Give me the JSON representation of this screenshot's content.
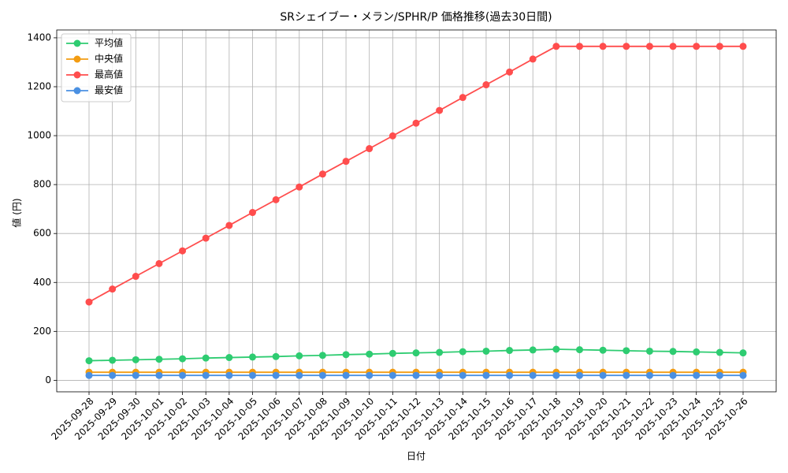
{
  "chart_data": {
    "type": "line",
    "title": "SRシェイブー・メラン/SPHR/P 価格推移(過去30日間)",
    "x_label": "日付",
    "y_label": "値 (円)",
    "categories": [
      "2025-09-28",
      "2025-09-29",
      "2025-09-30",
      "2025-10-01",
      "2025-10-02",
      "2025-10-03",
      "2025-10-04",
      "2025-10-05",
      "2025-10-06",
      "2025-10-07",
      "2025-10-08",
      "2025-10-09",
      "2025-10-10",
      "2025-10-11",
      "2025-10-12",
      "2025-10-13",
      "2025-10-14",
      "2025-10-15",
      "2025-10-16",
      "2025-10-17",
      "2025-10-18",
      "2025-10-19",
      "2025-10-20",
      "2025-10-21",
      "2025-10-22",
      "2025-10-23",
      "2025-10-24",
      "2025-10-25",
      "2025-10-26"
    ],
    "series": [
      {
        "name": "平均値",
        "color": "#2ecc71",
        "values": [
          80,
          82,
          84,
          86,
          88,
          91,
          93,
          95,
          97,
          100,
          102,
          105,
          107,
          110,
          112,
          114,
          117,
          119,
          122,
          124,
          127,
          125,
          123,
          121,
          119,
          118,
          116,
          114,
          112
        ]
      },
      {
        "name": "中央値",
        "color": "#f39c12",
        "values": [
          33,
          33,
          33,
          33,
          33,
          33,
          33,
          33,
          33,
          33,
          33,
          33,
          33,
          33,
          33,
          33,
          33,
          33,
          33,
          33,
          33,
          33,
          33,
          33,
          33,
          33,
          33,
          33,
          33
        ]
      },
      {
        "name": "最高値",
        "color": "#ff4d4d",
        "values": [
          320,
          373,
          425,
          477,
          529,
          581,
          633,
          686,
          738,
          790,
          843,
          895,
          947,
          999,
          1051,
          1103,
          1156,
          1208,
          1260,
          1313,
          1365,
          1365,
          1365,
          1365,
          1365,
          1365,
          1365,
          1365,
          1365
        ]
      },
      {
        "name": "最安値",
        "color": "#4a90e2",
        "values": [
          20,
          20,
          20,
          20,
          20,
          20,
          20,
          20,
          20,
          20,
          20,
          20,
          20,
          20,
          20,
          20,
          20,
          20,
          20,
          20,
          20,
          20,
          20,
          20,
          20,
          20,
          20,
          20,
          20
        ]
      }
    ],
    "ylim": [
      -47,
      1432
    ],
    "yticks": [
      0,
      200,
      400,
      600,
      800,
      1000,
      1200,
      1400
    ],
    "grid": true,
    "legend": "upper-left"
  }
}
